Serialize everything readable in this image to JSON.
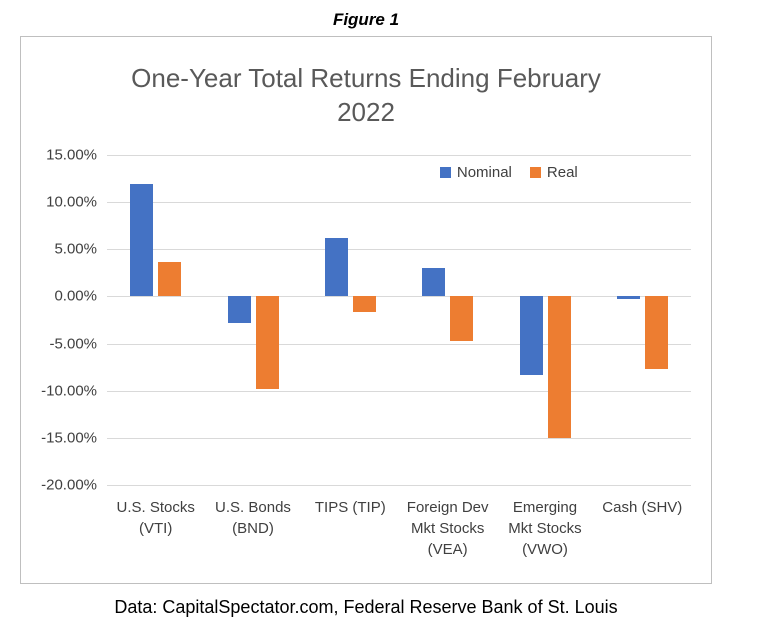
{
  "figure_label": "Figure 1",
  "footer": "Data: CapitalSpectator.com, Federal Reserve Bank of St. Louis",
  "chart_data": {
    "type": "bar",
    "title": "One-Year Total Returns Ending February 2022",
    "categories": [
      "U.S. Stocks (VTI)",
      "U.S. Bonds (BND)",
      "TIPS (TIP)",
      "Foreign Dev Mkt Stocks (VEA)",
      "Emerging Mkt Stocks (VWO)",
      "Cash (SHV)"
    ],
    "series": [
      {
        "name": "Nominal",
        "color": "#4472C4",
        "values": [
          11.9,
          -2.8,
          6.2,
          3.0,
          -8.3,
          -0.3
        ]
      },
      {
        "name": "Real",
        "color": "#ED7D31",
        "values": [
          3.6,
          -9.8,
          -1.6,
          -4.7,
          -15.0,
          -7.7
        ]
      }
    ],
    "ylim": [
      -20,
      15
    ],
    "ytick_step": 5,
    "ytick_labels": [
      "15.00%",
      "10.00%",
      "5.00%",
      "0.00%",
      "-5.00%",
      "-10.00%",
      "-15.00%",
      "-20.00%"
    ],
    "grid": true,
    "legend_position": "top-right",
    "xlabel": "",
    "ylabel": ""
  }
}
